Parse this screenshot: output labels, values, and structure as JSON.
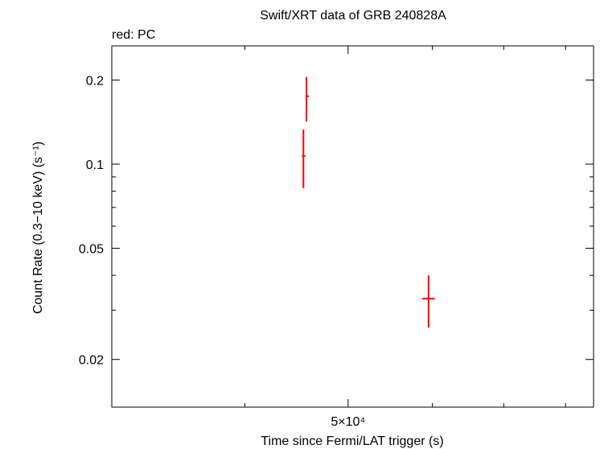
{
  "chart_data": {
    "type": "scatter",
    "title": "Swift/XRT data of GRB 240828A",
    "subtitle": "red: PC",
    "xlabel": "Time since Fermi/LAT trigger (s)",
    "ylabel": "Count Rate (0.3−10 keV) (s⁻¹)",
    "x_scale": "log",
    "y_scale": "log",
    "xlim": [
      30000,
      85000
    ],
    "ylim": [
      0.0135,
      0.265
    ],
    "x_tick_labels": [
      {
        "value": 50000,
        "label": "5×10⁴"
      }
    ],
    "x_minor_ticks": [
      40000,
      60000,
      70000,
      80000
    ],
    "y_tick_labels": [
      {
        "value": 0.2,
        "label": "0.2"
      },
      {
        "value": 0.1,
        "label": "0.1"
      },
      {
        "value": 0.05,
        "label": "0.05"
      },
      {
        "value": 0.02,
        "label": "0.02"
      }
    ],
    "y_minor_ticks": [
      0.03,
      0.04,
      0.06,
      0.07,
      0.08,
      0.09
    ],
    "grid": false,
    "legend": "none",
    "series": [
      {
        "color": "#ff0000",
        "points": [
          {
            "x": 45700,
            "y": 0.175,
            "y_low": 0.142,
            "y_high": 0.205,
            "x_low": 45600,
            "x_high": 45950
          },
          {
            "x": 45400,
            "y": 0.107,
            "y_low": 0.082,
            "y_high": 0.133,
            "x_low": 45250,
            "x_high": 45600
          },
          {
            "x": 59500,
            "y": 0.033,
            "y_low": 0.026,
            "y_high": 0.04,
            "x_low": 58700,
            "x_high": 60300
          }
        ]
      }
    ]
  }
}
